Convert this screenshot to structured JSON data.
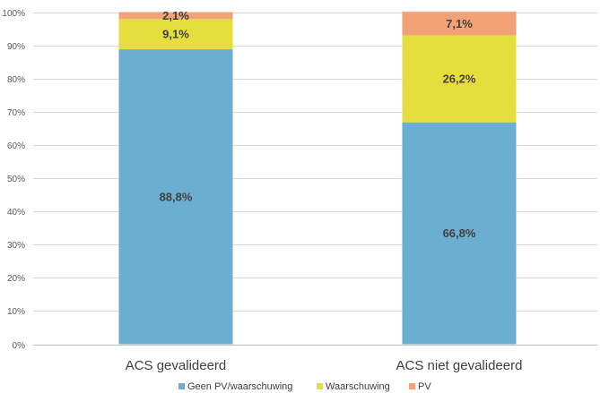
{
  "chart_data": {
    "type": "bar",
    "stacked": true,
    "percent": true,
    "categories": [
      "ACS gevalideerd",
      "ACS niet gevalideerd"
    ],
    "series": [
      {
        "name": "Geen PV/waarschuwing",
        "color": "#6BAED0",
        "values": [
          88.8,
          66.8
        ],
        "labels": [
          "88,8%",
          "66,8%"
        ]
      },
      {
        "name": "Waarschuwing",
        "color": "#E6DE3E",
        "values": [
          9.1,
          26.2
        ],
        "labels": [
          "9,1%",
          "26,2%"
        ]
      },
      {
        "name": "PV",
        "color": "#F2A276",
        "values": [
          2.1,
          7.1
        ],
        "labels": [
          "2,1%",
          "7,1%"
        ]
      }
    ],
    "ylim": [
      0,
      100
    ],
    "yticks": [
      "0%",
      "10%",
      "20%",
      "30%",
      "40%",
      "50%",
      "60%",
      "70%",
      "80%",
      "90%",
      "100%"
    ],
    "grid": true,
    "legend": "bottom",
    "title": "",
    "xlabel": "",
    "ylabel": ""
  }
}
